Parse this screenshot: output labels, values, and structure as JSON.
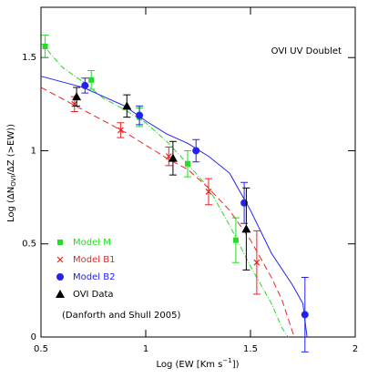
{
  "chart_data": {
    "type": "scatter",
    "annotation": "OVI UV Doublet",
    "citation": "(Danforth and Shull 2005)",
    "x_label": {
      "before": "Log (EW [Km s",
      "sup": "−1",
      "after": "])"
    },
    "y_label": {
      "before": "Log (ΔN",
      "sub": "OVI",
      "after": "/ΔZ (>EW))"
    },
    "xlim": [
      0.5,
      2
    ],
    "ylim": [
      0,
      1.77
    ],
    "xticks": [
      0.5,
      1,
      1.5,
      2
    ],
    "yticks": [
      0,
      0.5,
      1,
      1.5
    ],
    "legend": "lower left",
    "series": [
      {
        "name": "Model M",
        "color": "#22dd22",
        "marker": "square",
        "dash": "6 2 1 2",
        "line_x": [
          0.5,
          0.6,
          0.7,
          0.8,
          0.9,
          1.0,
          1.1,
          1.2,
          1.3,
          1.4,
          1.5,
          1.6,
          1.65,
          1.68
        ],
        "line_y": [
          1.58,
          1.45,
          1.37,
          1.28,
          1.22,
          1.15,
          1.05,
          0.93,
          0.8,
          0.6,
          0.38,
          0.18,
          0.05,
          0
        ],
        "x": [
          0.52,
          0.74,
          0.97,
          1.2,
          1.43
        ],
        "values": [
          1.56,
          1.38,
          1.18,
          0.93,
          0.52
        ],
        "errors": [
          0.06,
          0.05,
          0.05,
          0.07,
          0.12
        ]
      },
      {
        "name": "Model B1",
        "color": "#ee2222",
        "marker": "cross",
        "dash": "7 4",
        "line_x": [
          0.5,
          0.6,
          0.7,
          0.8,
          0.9,
          1.0,
          1.1,
          1.2,
          1.3,
          1.4,
          1.5,
          1.6,
          1.65,
          1.7,
          1.71
        ],
        "line_y": [
          1.34,
          1.28,
          1.22,
          1.16,
          1.1,
          1.03,
          0.96,
          0.9,
          0.8,
          0.68,
          0.52,
          0.32,
          0.2,
          0.03,
          0
        ],
        "x": [
          0.66,
          0.88,
          1.11,
          1.3,
          1.53
        ],
        "values": [
          1.25,
          1.11,
          0.97,
          0.78,
          0.4
        ],
        "errors": [
          0.04,
          0.04,
          0.05,
          0.07,
          0.17
        ]
      },
      {
        "name": "Model B2",
        "color": "#2222ee",
        "marker": "circle",
        "dash": "none",
        "line_x": [
          0.5,
          0.6,
          0.7,
          0.8,
          0.9,
          1.0,
          1.1,
          1.2,
          1.3,
          1.4,
          1.5,
          1.6,
          1.7,
          1.75,
          1.77
        ],
        "line_y": [
          1.4,
          1.37,
          1.34,
          1.29,
          1.24,
          1.16,
          1.09,
          1.04,
          0.97,
          0.88,
          0.68,
          0.45,
          0.28,
          0.18,
          0
        ],
        "x": [
          0.71,
          0.97,
          1.24,
          1.47,
          1.76
        ],
        "values": [
          1.35,
          1.19,
          1.0,
          0.72,
          0.12
        ],
        "errors": [
          0.04,
          0.05,
          0.06,
          0.11,
          0.2
        ]
      },
      {
        "name": "OVI Data",
        "color": "#000000",
        "marker": "triangle",
        "x": [
          0.67,
          0.91,
          1.13,
          1.48
        ],
        "values": [
          1.29,
          1.24,
          0.96,
          0.58
        ],
        "errors": [
          0.05,
          0.06,
          0.09,
          0.22
        ]
      }
    ]
  }
}
